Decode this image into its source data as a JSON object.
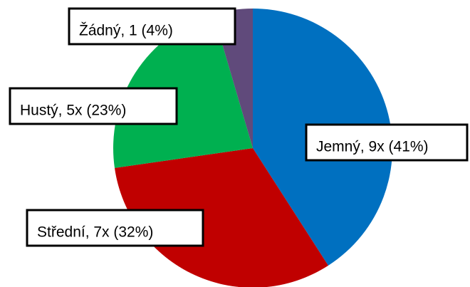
{
  "chart_data": {
    "type": "pie",
    "values": [
      9,
      7,
      5,
      1
    ],
    "value_labels": [
      "Jemný, 9x (41%)",
      "Střední, 7x (32%)",
      "Hustý, 5x (23%)",
      "Žádný, 1 (4%)"
    ],
    "colors": [
      "#0070c0",
      "#c00000",
      "#00b050",
      "#604a7b"
    ]
  }
}
